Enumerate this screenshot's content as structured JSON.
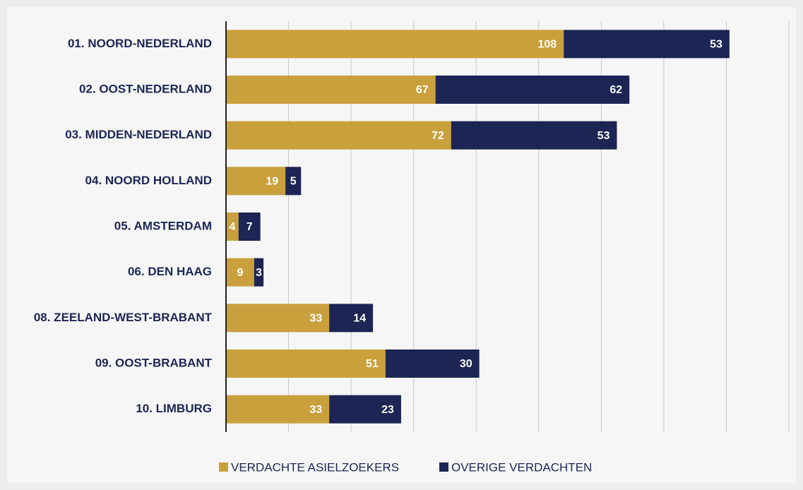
{
  "chart_data": {
    "type": "stacked-barh",
    "categories": [
      "01. NOORD-NEDERLAND",
      "02. OOST-NEDERLAND",
      "03. MIDDEN-NEDERLAND",
      "04. NOORD HOLLAND",
      "05. AMSTERDAM",
      "06. DEN HAAG",
      "08. ZEELAND-WEST-BRABANT",
      "09. OOST-BRABANT",
      "10. LIMBURG"
    ],
    "series": [
      {
        "name": "VERDACHTE ASIELZOEKERS",
        "color": "#c9a03c",
        "values": [
          108,
          67,
          72,
          19,
          4,
          9,
          33,
          51,
          33
        ]
      },
      {
        "name": "OVERIGE VERDACHTEN",
        "color": "#1c2553",
        "values": [
          53,
          62,
          53,
          5,
          7,
          3,
          14,
          30,
          23
        ]
      }
    ],
    "xlim": [
      0,
      180
    ],
    "xticks": [
      0,
      20,
      40,
      60,
      80,
      100,
      120,
      140,
      160,
      180
    ],
    "grid": true,
    "legend": "bottom"
  }
}
